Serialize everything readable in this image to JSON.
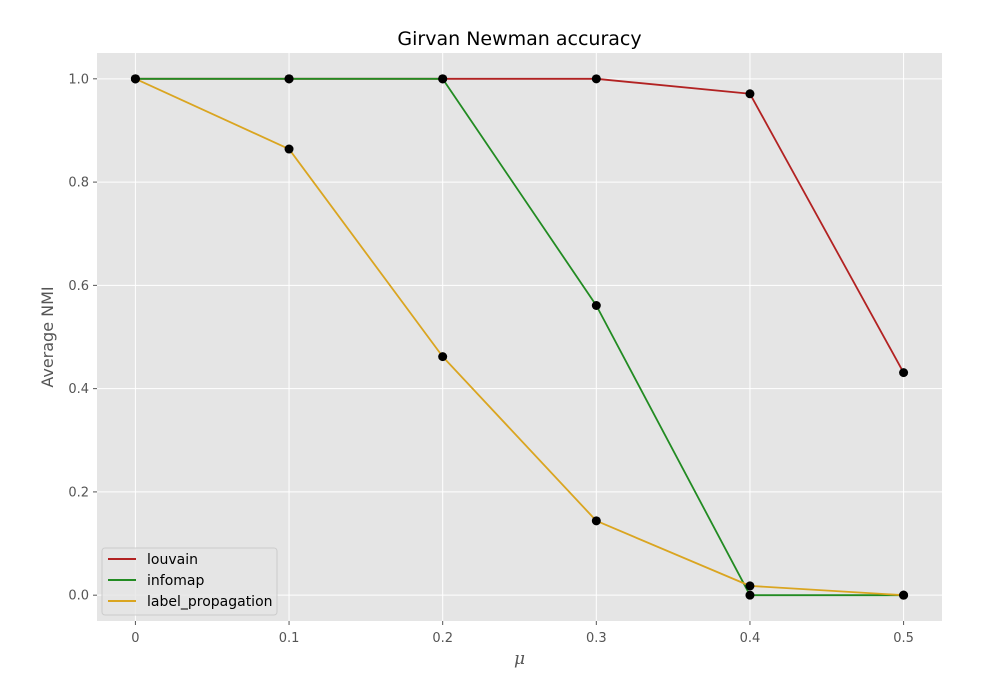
{
  "chart_data": {
    "type": "line",
    "title": "Girvan Newman accuracy",
    "xlabel": "μ",
    "ylabel": "Average NMI",
    "x": [
      0,
      0.1,
      0.2,
      0.3,
      0.4,
      0.5
    ],
    "x_tick_labels": [
      "0",
      "0.1",
      "0.2",
      "0.3",
      "0.4",
      "0.5"
    ],
    "y_ticks": [
      0.0,
      0.2,
      0.4,
      0.6,
      0.8,
      1.0
    ],
    "y_tick_labels": [
      "0.0",
      "0.2",
      "0.4",
      "0.6",
      "0.8",
      "1.0"
    ],
    "xlim": [
      -0.025,
      0.525
    ],
    "ylim": [
      -0.05,
      1.05
    ],
    "grid": true,
    "legend_position": "lower-left",
    "background_color": "#e5e5e5",
    "marker_color": "#000000",
    "series": [
      {
        "name": "louvain",
        "color": "#b22222",
        "values": [
          1.0,
          1.0,
          1.0,
          1.0,
          0.971,
          0.431
        ]
      },
      {
        "name": "infomap",
        "color": "#228b22",
        "values": [
          1.0,
          1.0,
          1.0,
          0.561,
          0.0,
          0.0
        ]
      },
      {
        "name": "label_propagation",
        "color": "#daa520",
        "values": [
          1.0,
          0.864,
          0.462,
          0.144,
          0.018,
          0.0
        ]
      }
    ]
  }
}
